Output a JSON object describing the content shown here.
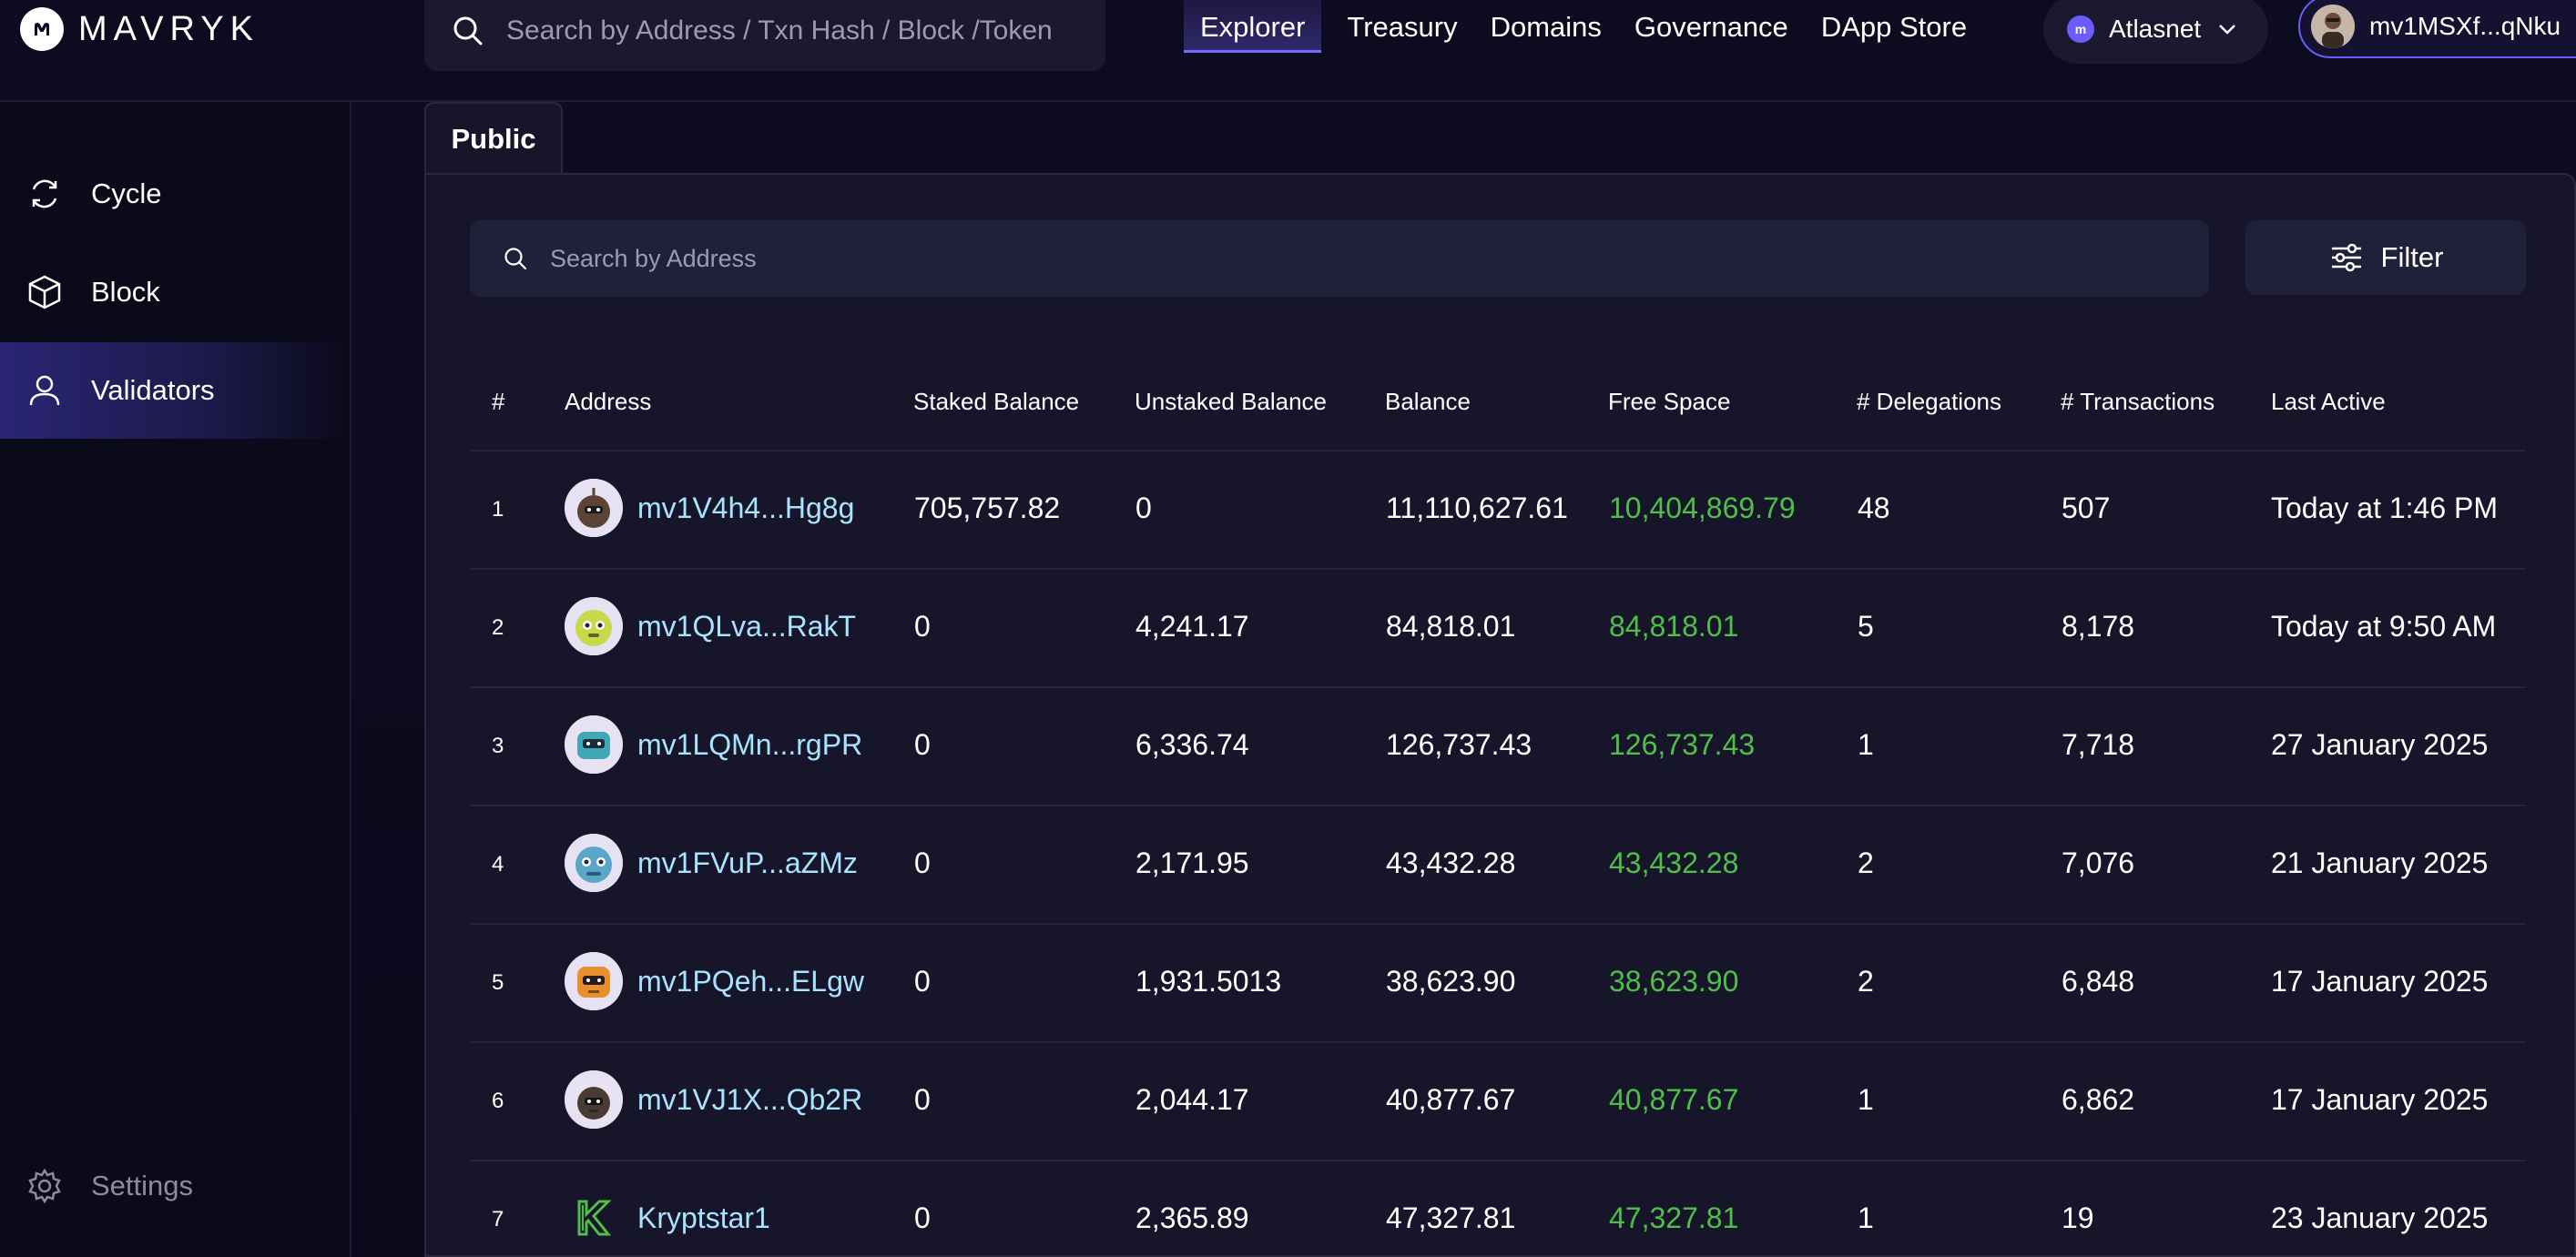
{
  "app": {
    "logo_text": "MAVRYK",
    "search_placeholder": "Search by Address / Txn Hash / Block /Token"
  },
  "nav": [
    {
      "label": "Explorer",
      "active": true
    },
    {
      "label": "Treasury"
    },
    {
      "label": "Domains"
    },
    {
      "label": "Governance"
    },
    {
      "label": "DApp Store"
    }
  ],
  "network": {
    "label": "Atlasnet",
    "icon": "mavryk-network-icon"
  },
  "wallet": {
    "label": "mv1MSXf...qNku"
  },
  "sidebar": {
    "items": [
      {
        "label": "Cycle",
        "icon": "cycle-icon"
      },
      {
        "label": "Block",
        "icon": "cube-icon"
      },
      {
        "label": "Validators",
        "icon": "user-icon",
        "active": true
      }
    ],
    "settings": {
      "label": "Settings",
      "icon": "gear-icon"
    }
  },
  "tabs": [
    {
      "label": "Public",
      "active": true
    }
  ],
  "filter": {
    "search_placeholder": "Search by Address",
    "button_label": "Filter"
  },
  "table": {
    "columns": [
      "#",
      "Address",
      "Staked Balance",
      "Unstaked Balance",
      "Balance",
      "Free Space",
      "# Delegations",
      "# Transactions",
      "Last Active"
    ],
    "rows": [
      {
        "n": "1",
        "address": "mv1V4h4...Hg8g",
        "staked": "705,757.82",
        "unstaked": "0",
        "balance": "11,110,627.61",
        "free": "10,404,869.79",
        "delegations": "48",
        "transactions": "507",
        "last_active": "Today at 1:46 PM",
        "avatar": "robot-brown"
      },
      {
        "n": "2",
        "address": "mv1QLva...RakT",
        "staked": "0",
        "unstaked": "4,241.17",
        "balance": "84,818.01",
        "free": "84,818.01",
        "delegations": "5",
        "transactions": "8,178",
        "last_active": "Today at 9:50 AM",
        "avatar": "robot-yellow"
      },
      {
        "n": "3",
        "address": "mv1LQMn...rgPR",
        "staked": "0",
        "unstaked": "6,336.74",
        "balance": "126,737.43",
        "free": "126,737.43",
        "delegations": "1",
        "transactions": "7,718",
        "last_active": "27 January 2025",
        "avatar": "robot-teal"
      },
      {
        "n": "4",
        "address": "mv1FVuP...aZMz",
        "staked": "0",
        "unstaked": "2,171.95",
        "balance": "43,432.28",
        "free": "43,432.28",
        "delegations": "2",
        "transactions": "7,076",
        "last_active": "21 January 2025",
        "avatar": "robot-blue"
      },
      {
        "n": "5",
        "address": "mv1PQeh...ELgw",
        "staked": "0",
        "unstaked": "1,931.5013",
        "balance": "38,623.90",
        "free": "38,623.90",
        "delegations": "2",
        "transactions": "6,848",
        "last_active": "17 January 2025",
        "avatar": "robot-orange"
      },
      {
        "n": "6",
        "address": "mv1VJ1X...Qb2R",
        "staked": "0",
        "unstaked": "2,044.17",
        "balance": "40,877.67",
        "free": "40,877.67",
        "delegations": "1",
        "transactions": "6,862",
        "last_active": "17 January 2025",
        "avatar": "robot-dark"
      },
      {
        "n": "7",
        "address": "Kryptstar1",
        "staked": "0",
        "unstaked": "2,365.89",
        "balance": "47,327.81",
        "free": "47,327.81",
        "delegations": "1",
        "transactions": "19",
        "last_active": "23 January 2025",
        "avatar": "kryptstar-logo"
      }
    ]
  },
  "colors": {
    "accent": "#6a5cff",
    "free_space": "#4fbf48",
    "address_link": "#a8e4ff",
    "background": "#0b0a1c",
    "panel": "#16152a"
  }
}
